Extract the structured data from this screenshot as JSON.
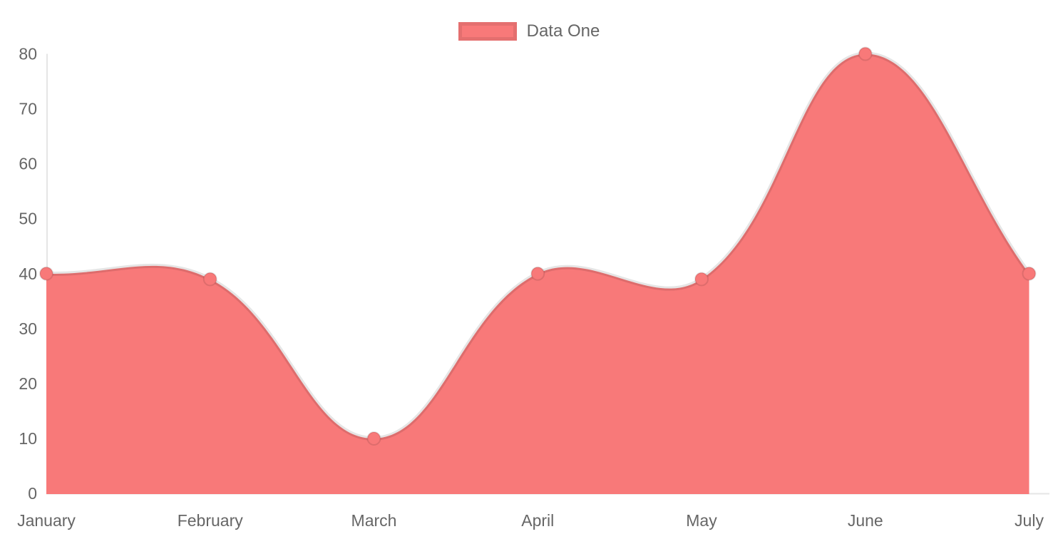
{
  "chart_data": {
    "type": "area",
    "title": "",
    "categories": [
      "January",
      "February",
      "March",
      "April",
      "May",
      "June",
      "July"
    ],
    "series": [
      {
        "name": "Data One",
        "values": [
          40,
          39,
          10,
          40,
          39,
          80,
          40
        ]
      }
    ],
    "xlabel": "",
    "ylabel": "",
    "ylim": [
      0,
      80
    ],
    "yticks": [
      0,
      10,
      20,
      30,
      40,
      50,
      60,
      70,
      80
    ],
    "grid": false,
    "legend_position": "top",
    "line_tension": 0.4,
    "colors": {
      "fill": "#f87979",
      "point": "#f87979",
      "line_border": "rgba(0,0,0,0.1)",
      "axis_line": "rgba(0,0,0,0.1)",
      "tick_text": "#666666"
    }
  }
}
